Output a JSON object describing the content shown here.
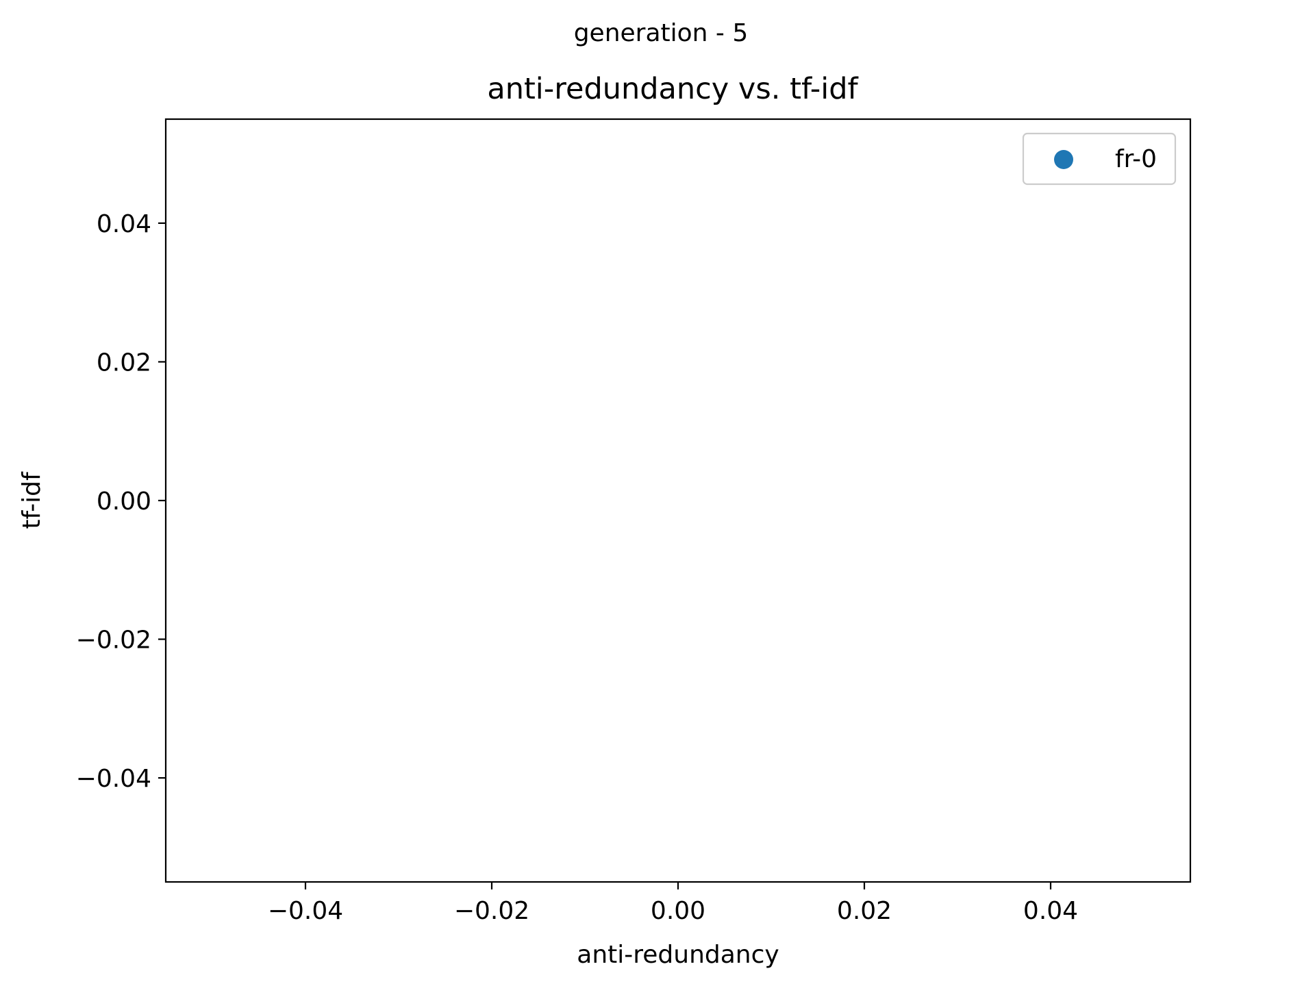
{
  "figure": {
    "suptitle": "generation - 5"
  },
  "chart_data": {
    "type": "scatter",
    "title": "anti-redundancy vs. tf-idf",
    "xlabel": "anti-redundancy",
    "ylabel": "tf-idf",
    "xlim": [
      -0.055,
      0.055
    ],
    "ylim": [
      -0.055,
      0.055
    ],
    "x_ticks": [
      -0.04,
      -0.02,
      0.0,
      0.02,
      0.04
    ],
    "y_ticks": [
      -0.04,
      -0.02,
      0.0,
      0.02,
      0.04
    ],
    "x_tick_labels": [
      "−0.04",
      "−0.02",
      "0.00",
      "0.02",
      "0.04"
    ],
    "y_tick_labels": [
      "−0.04",
      "−0.02",
      "0.00",
      "0.02",
      "0.04"
    ],
    "grid": false,
    "legend_position": "top-right",
    "series": [
      {
        "name": "fr-0",
        "color": "#1f77b4",
        "marker": "circle",
        "points": []
      }
    ]
  }
}
